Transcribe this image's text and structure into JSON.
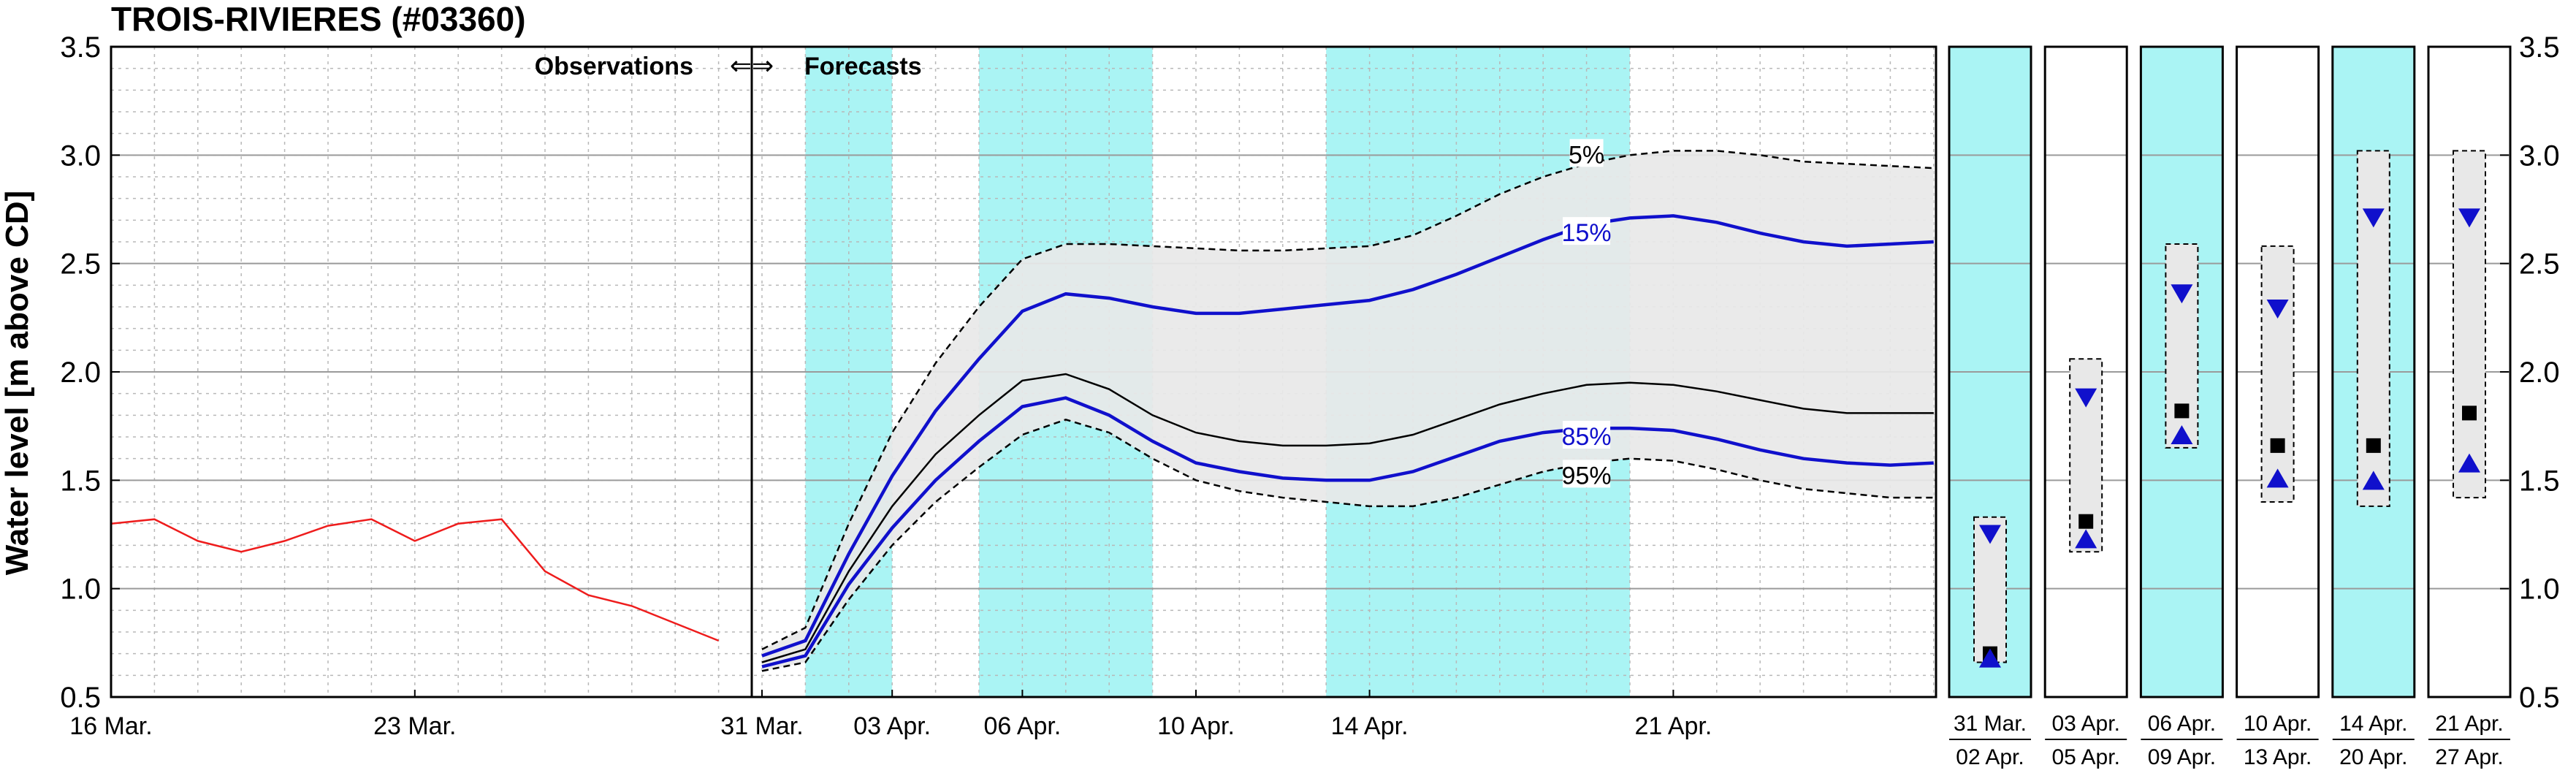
{
  "chart_data": {
    "type": "line",
    "title": "TROIS-RIVIERES (#03360)",
    "ylabel": "Water level [m above CD]",
    "ylim": [
      0.5,
      3.5
    ],
    "yticks": [
      "0.5",
      "1.0",
      "1.5",
      "2.0",
      "2.5",
      "3.0",
      "3.5"
    ],
    "grid": true,
    "colors": {
      "observed": "#ee1c1c",
      "percentile": "#1010cc",
      "median": "#000000",
      "band": "#e8e8e8",
      "shade": "#aaf4f4"
    },
    "observations_label": "Observations",
    "forecasts_label": "Forecasts",
    "arrows_label": "⇐⇒",
    "x_tick_labels": [
      {
        "date": "2024-03-16",
        "label": "16 Mar."
      },
      {
        "date": "2024-03-23",
        "label": "23 Mar."
      },
      {
        "date": "2024-03-31",
        "label": "31 Mar."
      },
      {
        "date": "2024-04-03",
        "label": "03 Apr."
      },
      {
        "date": "2024-04-06",
        "label": "06 Apr."
      },
      {
        "date": "2024-04-10",
        "label": "10 Apr."
      },
      {
        "date": "2024-04-14",
        "label": "14 Apr."
      },
      {
        "date": "2024-04-21",
        "label": "21 Apr."
      }
    ],
    "observed": {
      "x": [
        "2024-03-16",
        "2024-03-17",
        "2024-03-18",
        "2024-03-19",
        "2024-03-20",
        "2024-03-21",
        "2024-03-22",
        "2024-03-23",
        "2024-03-24",
        "2024-03-25",
        "2024-03-26",
        "2024-03-27",
        "2024-03-28",
        "2024-03-29",
        "2024-03-30"
      ],
      "y": [
        1.3,
        1.32,
        1.22,
        1.17,
        1.22,
        1.29,
        1.32,
        1.22,
        1.3,
        1.32,
        1.08,
        0.97,
        0.92,
        0.84,
        0.76
      ]
    },
    "forecast_x": [
      "2024-03-31",
      "2024-04-01",
      "2024-04-02",
      "2024-04-03",
      "2024-04-04",
      "2024-04-05",
      "2024-04-06",
      "2024-04-07",
      "2024-04-08",
      "2024-04-09",
      "2024-04-10",
      "2024-04-11",
      "2024-04-12",
      "2024-04-13",
      "2024-04-14",
      "2024-04-15",
      "2024-04-16",
      "2024-04-17",
      "2024-04-18",
      "2024-04-19",
      "2024-04-20",
      "2024-04-21",
      "2024-04-22",
      "2024-04-23",
      "2024-04-24",
      "2024-04-25",
      "2024-04-26",
      "2024-04-27"
    ],
    "series": [
      {
        "name": "5%",
        "role": "band_upper",
        "y": [
          0.72,
          0.82,
          1.3,
          1.72,
          2.04,
          2.3,
          2.52,
          2.59,
          2.59,
          2.58,
          2.57,
          2.56,
          2.56,
          2.57,
          2.58,
          2.63,
          2.72,
          2.82,
          2.9,
          2.96,
          3.0,
          3.02,
          3.02,
          3.0,
          2.97,
          2.96,
          2.95,
          2.94
        ]
      },
      {
        "name": "15%",
        "role": "percentile",
        "y": [
          0.69,
          0.76,
          1.16,
          1.52,
          1.82,
          2.06,
          2.28,
          2.36,
          2.34,
          2.3,
          2.27,
          2.27,
          2.29,
          2.31,
          2.33,
          2.38,
          2.45,
          2.53,
          2.61,
          2.68,
          2.71,
          2.72,
          2.69,
          2.64,
          2.6,
          2.58,
          2.59,
          2.6
        ]
      },
      {
        "role": "median",
        "y": [
          0.66,
          0.72,
          1.08,
          1.38,
          1.62,
          1.8,
          1.96,
          1.99,
          1.92,
          1.8,
          1.72,
          1.68,
          1.66,
          1.66,
          1.67,
          1.71,
          1.78,
          1.85,
          1.9,
          1.94,
          1.95,
          1.94,
          1.91,
          1.87,
          1.83,
          1.81,
          1.81,
          1.81
        ]
      },
      {
        "name": "85%",
        "role": "percentile",
        "y": [
          0.64,
          0.69,
          1.02,
          1.28,
          1.5,
          1.68,
          1.84,
          1.88,
          1.8,
          1.68,
          1.58,
          1.54,
          1.51,
          1.5,
          1.5,
          1.54,
          1.61,
          1.68,
          1.72,
          1.74,
          1.74,
          1.73,
          1.69,
          1.64,
          1.6,
          1.58,
          1.57,
          1.58
        ]
      },
      {
        "name": "95%",
        "role": "band_lower",
        "y": [
          0.62,
          0.66,
          0.95,
          1.2,
          1.4,
          1.56,
          1.71,
          1.78,
          1.72,
          1.6,
          1.5,
          1.45,
          1.42,
          1.4,
          1.38,
          1.38,
          1.42,
          1.48,
          1.54,
          1.58,
          1.6,
          1.59,
          1.55,
          1.5,
          1.46,
          1.44,
          1.42,
          1.42
        ]
      }
    ],
    "shaded_periods": [
      {
        "from": "2024-04-01",
        "to": "2024-04-03"
      },
      {
        "from": "2024-04-05",
        "to": "2024-04-09"
      },
      {
        "from": "2024-04-13",
        "to": "2024-04-20"
      }
    ],
    "summary_panels": [
      {
        "label_top": "31  Mar.",
        "label_bottom": "02  Apr.",
        "shaded": true,
        "range": [
          0.66,
          1.33
        ],
        "upper_marker": 1.25,
        "median": 0.7,
        "lower_marker": 0.68
      },
      {
        "label_top": "03  Apr.",
        "label_bottom": "05  Apr.",
        "shaded": false,
        "range": [
          1.17,
          2.06
        ],
        "upper_marker": 1.88,
        "median": 1.31,
        "lower_marker": 1.23
      },
      {
        "label_top": "06  Apr.",
        "label_bottom": "09  Apr.",
        "shaded": true,
        "range": [
          1.65,
          2.59
        ],
        "upper_marker": 2.36,
        "median": 1.82,
        "lower_marker": 1.71
      },
      {
        "label_top": "10  Apr.",
        "label_bottom": "13  Apr.",
        "shaded": false,
        "range": [
          1.4,
          2.58
        ],
        "upper_marker": 2.29,
        "median": 1.66,
        "lower_marker": 1.51
      },
      {
        "label_top": "14  Apr.",
        "label_bottom": "20  Apr.",
        "shaded": true,
        "range": [
          1.38,
          3.02
        ],
        "upper_marker": 2.71,
        "median": 1.66,
        "lower_marker": 1.5
      },
      {
        "label_top": "21  Apr.",
        "label_bottom": "27  Apr.",
        "shaded": false,
        "range": [
          1.42,
          3.02
        ],
        "upper_marker": 2.71,
        "median": 1.81,
        "lower_marker": 1.58
      }
    ]
  }
}
